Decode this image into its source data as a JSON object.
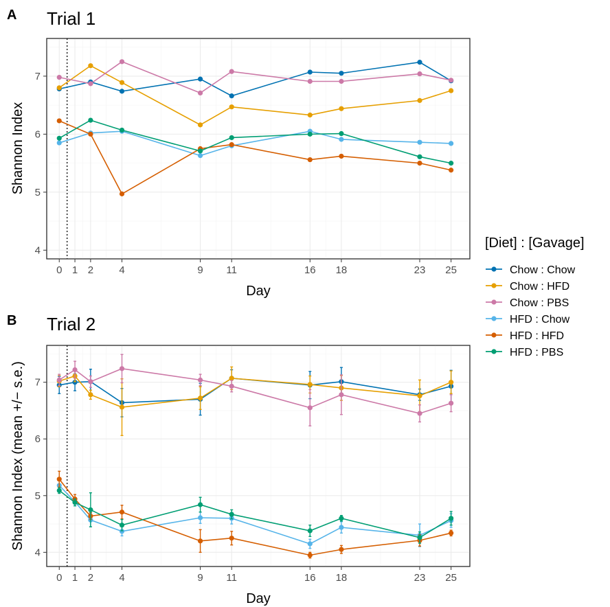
{
  "legend": {
    "title": "[Diet] : [Gavage]",
    "entries": [
      {
        "name": "Chow : Chow",
        "color": "#0072B2"
      },
      {
        "name": "Chow : HFD",
        "color": "#E69F00"
      },
      {
        "name": "Chow : PBS",
        "color": "#CC79A7"
      },
      {
        "name": "HFD : Chow",
        "color": "#56B4E9"
      },
      {
        "name": "HFD : HFD",
        "color": "#D55E00"
      },
      {
        "name": "HFD : PBS",
        "color": "#009E73"
      }
    ],
    "placement": "right"
  },
  "chart_data": [
    {
      "type": "line",
      "tag": "A",
      "title": "Trial 1",
      "xlabel": "Day",
      "ylabel": "Shannon Index",
      "xlim": [
        -0.8,
        26.2
      ],
      "ylim": [
        3.85,
        7.65
      ],
      "xticks": [
        0,
        1,
        2,
        4,
        9,
        11,
        16,
        18,
        23,
        25
      ],
      "yticks": [
        4,
        5,
        6,
        7
      ],
      "vline_x": 0.5,
      "grid": true,
      "series": [
        {
          "name": "Chow : Chow",
          "x": [
            0,
            2,
            4,
            9,
            11,
            16,
            18,
            23,
            25
          ],
          "y": [
            6.78,
            6.9,
            6.74,
            6.95,
            6.66,
            7.07,
            7.05,
            7.24,
            6.92
          ]
        },
        {
          "name": "Chow : HFD",
          "x": [
            0,
            2,
            4,
            9,
            11,
            16,
            18,
            23,
            25
          ],
          "y": [
            6.8,
            7.18,
            6.89,
            6.16,
            6.47,
            6.33,
            6.44,
            6.58,
            6.75
          ]
        },
        {
          "name": "Chow : PBS",
          "x": [
            0,
            2,
            4,
            9,
            11,
            16,
            18,
            23,
            25
          ],
          "y": [
            6.98,
            6.87,
            7.25,
            6.71,
            7.08,
            6.91,
            6.91,
            7.04,
            6.93
          ]
        },
        {
          "name": "HFD : Chow",
          "x": [
            0,
            2,
            4,
            9,
            11,
            16,
            18,
            23,
            25
          ],
          "y": [
            5.85,
            6.02,
            6.05,
            5.63,
            5.8,
            6.05,
            5.91,
            5.86,
            5.84
          ]
        },
        {
          "name": "HFD : HFD",
          "x": [
            0,
            2,
            4,
            9,
            11,
            16,
            18,
            23,
            25
          ],
          "y": [
            6.23,
            6.0,
            4.97,
            5.75,
            5.82,
            5.56,
            5.62,
            5.5,
            5.38
          ]
        },
        {
          "name": "HFD : PBS",
          "x": [
            0,
            2,
            4,
            9,
            11,
            16,
            18,
            23,
            25
          ],
          "y": [
            5.93,
            6.24,
            6.07,
            5.71,
            5.94,
            6.0,
            6.01,
            5.61,
            5.5
          ]
        }
      ]
    },
    {
      "type": "line",
      "tag": "B",
      "title": "Trial 2",
      "xlabel": "Day",
      "ylabel": "Shannon Index (mean +/− s.e.)",
      "xlim": [
        -0.8,
        26.2
      ],
      "ylim": [
        3.75,
        7.65
      ],
      "xticks": [
        0,
        1,
        2,
        4,
        9,
        11,
        16,
        18,
        23,
        25
      ],
      "yticks": [
        4,
        5,
        6,
        7
      ],
      "vline_x": 0.5,
      "grid": true,
      "error_bars": "standard error",
      "series": [
        {
          "name": "Chow : Chow",
          "x": [
            0,
            1,
            2,
            4,
            9,
            11,
            16,
            18,
            23,
            25
          ],
          "y": [
            6.95,
            7.0,
            7.01,
            6.64,
            6.7,
            7.07,
            6.95,
            7.01,
            6.78,
            6.93
          ],
          "se": [
            0.15,
            0.15,
            0.22,
            0.25,
            0.28,
            0.15,
            0.24,
            0.25,
            0.1,
            0.28
          ]
        },
        {
          "name": "Chow : HFD",
          "x": [
            0,
            1,
            2,
            4,
            9,
            11,
            16,
            18,
            23,
            25
          ],
          "y": [
            7.02,
            7.11,
            6.78,
            6.56,
            6.72,
            7.07,
            6.96,
            6.9,
            6.76,
            7.0
          ],
          "se": [
            0.1,
            0.1,
            0.08,
            0.5,
            0.2,
            0.2,
            0.15,
            0.22,
            0.28,
            0.2
          ]
        },
        {
          "name": "Chow : PBS",
          "x": [
            0,
            1,
            2,
            4,
            9,
            11,
            16,
            18,
            23,
            25
          ],
          "y": [
            7.04,
            7.22,
            7.01,
            7.24,
            7.04,
            6.93,
            6.55,
            6.78,
            6.45,
            6.63
          ],
          "se": [
            0.1,
            0.15,
            0.1,
            0.25,
            0.1,
            0.1,
            0.32,
            0.35,
            0.15,
            0.15
          ]
        },
        {
          "name": "HFD : Chow",
          "x": [
            0,
            1,
            2,
            4,
            9,
            11,
            16,
            18,
            23,
            25
          ],
          "y": [
            5.18,
            4.89,
            4.57,
            4.37,
            4.61,
            4.6,
            4.15,
            4.44,
            4.3,
            4.56
          ],
          "se": [
            0.08,
            0.07,
            0.12,
            0.08,
            0.1,
            0.1,
            0.08,
            0.1,
            0.2,
            0.12
          ]
        },
        {
          "name": "HFD : HFD",
          "x": [
            0,
            1,
            2,
            4,
            9,
            11,
            16,
            18,
            23,
            25
          ],
          "y": [
            5.29,
            4.94,
            4.64,
            4.71,
            4.2,
            4.25,
            3.95,
            4.05,
            4.21,
            4.34
          ],
          "se": [
            0.14,
            0.08,
            0.06,
            0.12,
            0.2,
            0.12,
            0.05,
            0.07,
            0.1,
            0.05
          ]
        },
        {
          "name": "HFD : PBS",
          "x": [
            0,
            1,
            2,
            4,
            9,
            11,
            16,
            18,
            23,
            25
          ],
          "y": [
            5.09,
            4.88,
            4.75,
            4.48,
            4.84,
            4.67,
            4.38,
            4.6,
            4.26,
            4.6
          ],
          "se": [
            0.05,
            0.06,
            0.3,
            0.1,
            0.13,
            0.08,
            0.1,
            0.05,
            0.1,
            0.12
          ]
        }
      ]
    }
  ]
}
